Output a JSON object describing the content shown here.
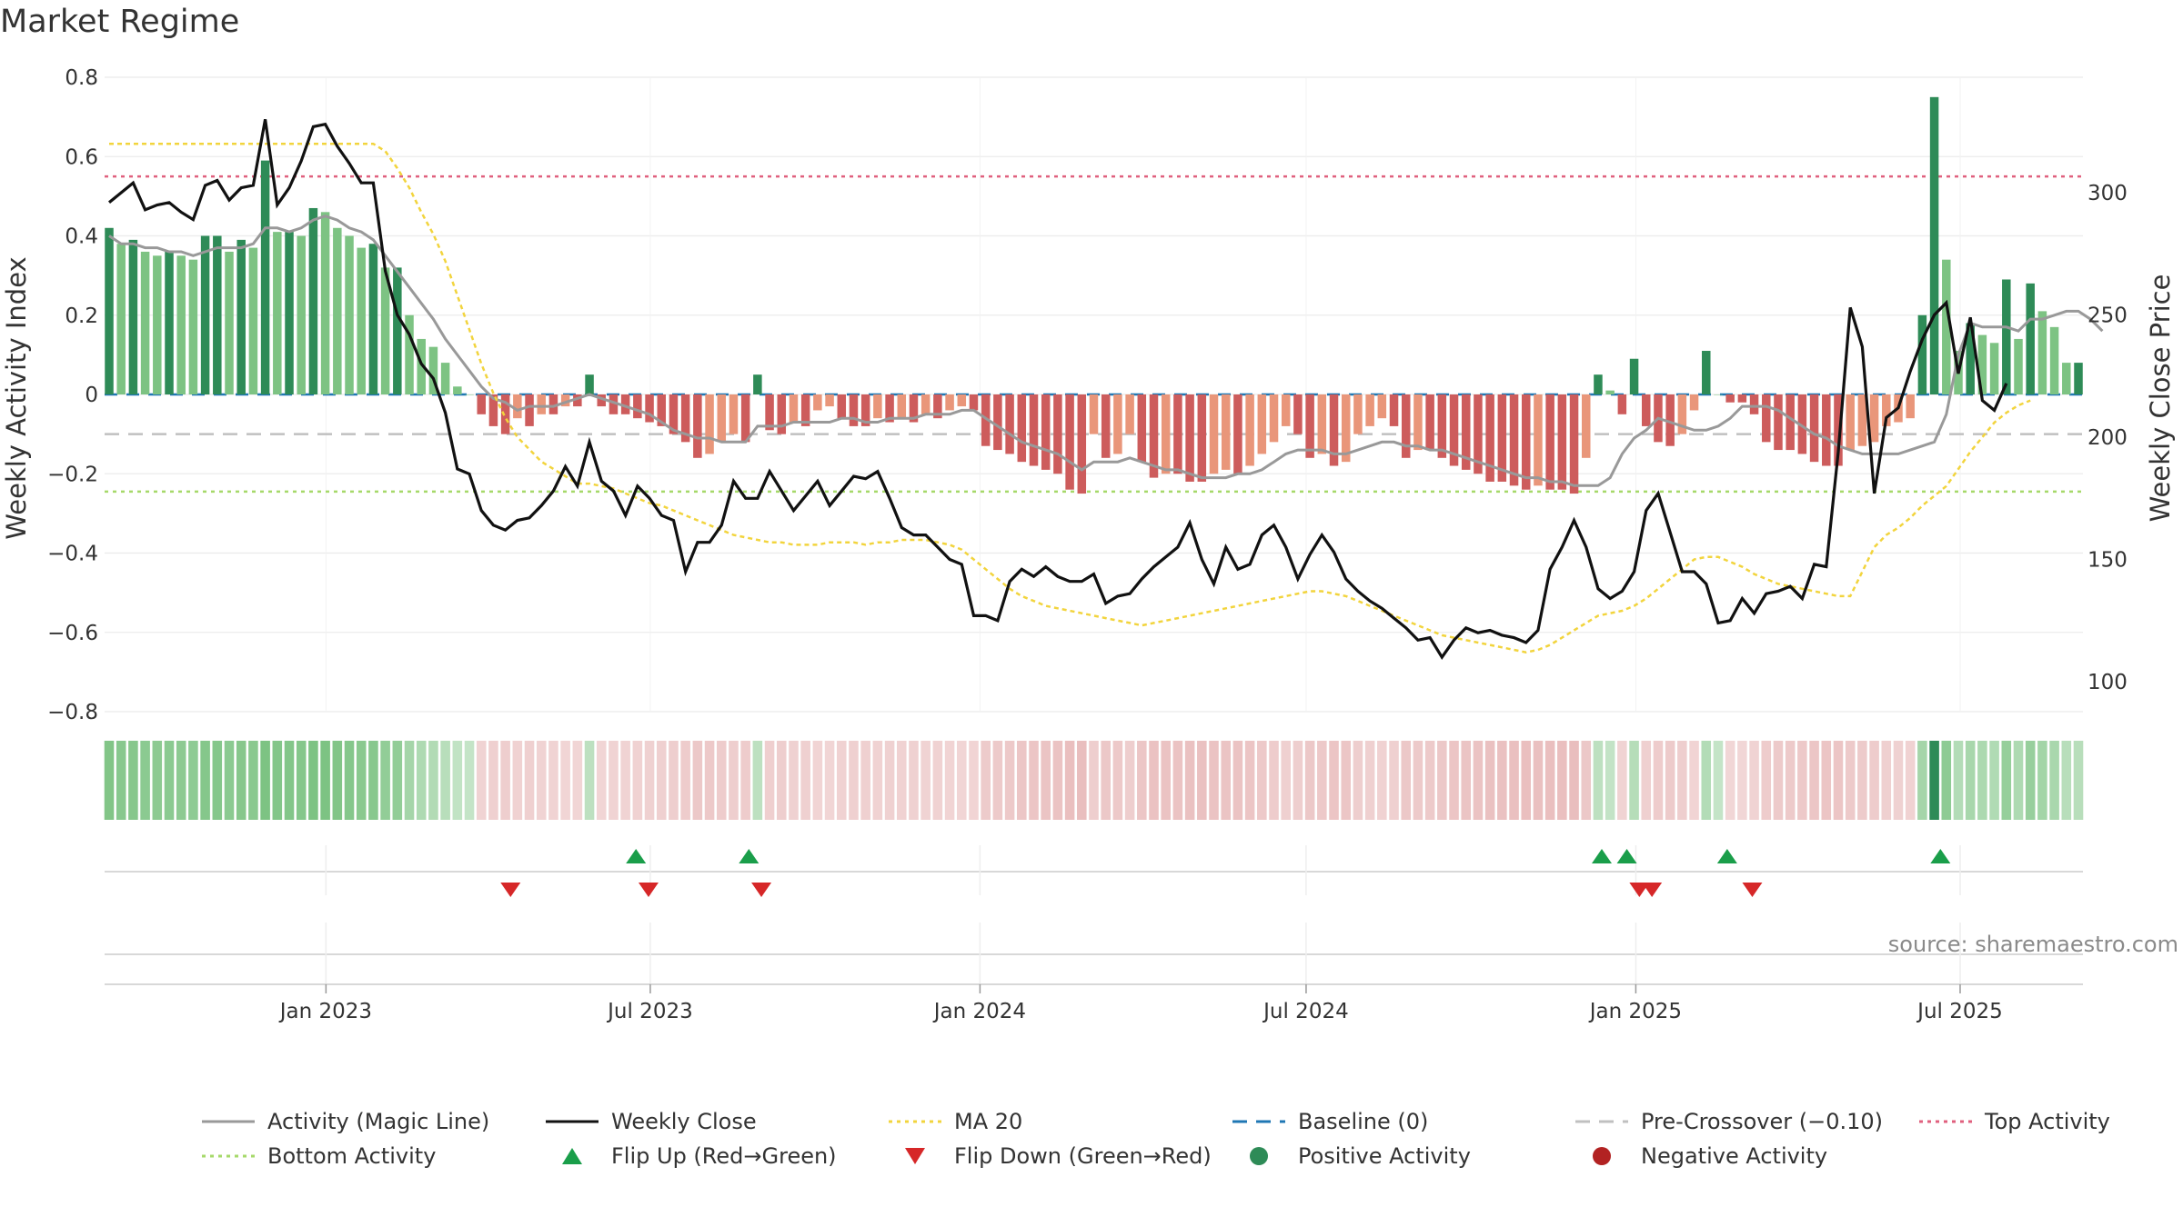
{
  "title": "Market Regime",
  "source": "source: sharemaestro.com",
  "colors": {
    "green_dark": "#2e8b57",
    "green_light": "#7dc383",
    "red_dark": "#cd5c5c",
    "red_light": "#e9967a",
    "magic_line": "#999999",
    "weekly_close": "#111111",
    "ma20": "#f2d43d",
    "baseline": "#1f77b4",
    "pre_crossover": "#c0c0c0",
    "top_activity": "#e0607e",
    "bottom_activity": "#a6d96a",
    "flip_up": "#1a9e4a",
    "flip_down": "#d62728"
  },
  "chart_data": {
    "type": "bar",
    "title": "Market Regime",
    "ylabel": "Weekly Activity Index",
    "y2label": "Weekly Close Price",
    "ylim": [
      -0.8,
      0.8
    ],
    "y2lim": [
      100,
      320
    ],
    "yticks": [
      "0.8",
      "0.6",
      "0.4",
      "0.2",
      "0",
      "−0.2",
      "−0.4",
      "−0.6",
      "−0.8"
    ],
    "yticks_values": [
      0.8,
      0.6,
      0.4,
      0.2,
      0,
      -0.2,
      -0.4,
      -0.6,
      -0.8
    ],
    "y2ticks": [
      "300",
      "250",
      "200",
      "150",
      "100"
    ],
    "y2ticks_values": [
      300,
      250,
      200,
      150,
      100
    ],
    "x_start": "2022-09-02",
    "x_end": "2025-09-05",
    "xticks": [
      {
        "date": "2023-01-01",
        "label": "Jan 2023"
      },
      {
        "date": "2023-07-01",
        "label": "Jul 2023"
      },
      {
        "date": "2024-01-01",
        "label": "Jan 2024"
      },
      {
        "date": "2024-07-01",
        "label": "Jul 2024"
      },
      {
        "date": "2025-01-01",
        "label": "Jan 2025"
      },
      {
        "date": "2025-07-01",
        "label": "Jul 2025"
      }
    ],
    "grid": true,
    "reference_lines": {
      "top_activity": 0.55,
      "bottom_activity": -0.245,
      "pre_crossover": -0.1,
      "baseline": 0
    },
    "activity_bars": [
      0.42,
      0.38,
      0.39,
      0.36,
      0.35,
      0.36,
      0.35,
      0.34,
      0.4,
      0.4,
      0.36,
      0.39,
      0.37,
      0.59,
      0.41,
      0.41,
      0.4,
      0.47,
      0.46,
      0.42,
      0.4,
      0.37,
      0.38,
      0.32,
      0.32,
      0.2,
      0.14,
      0.12,
      0.08,
      0.02,
      0,
      -0.05,
      -0.08,
      -0.1,
      -0.06,
      -0.08,
      -0.05,
      -0.05,
      -0.03,
      -0.03,
      0.05,
      -0.03,
      -0.05,
      -0.05,
      -0.06,
      -0.07,
      -0.08,
      -0.1,
      -0.12,
      -0.16,
      -0.15,
      -0.12,
      -0.1,
      -0.12,
      0.05,
      -0.09,
      -0.1,
      -0.07,
      -0.08,
      -0.04,
      -0.03,
      -0.06,
      -0.08,
      -0.08,
      -0.06,
      -0.07,
      -0.06,
      -0.07,
      -0.05,
      -0.06,
      -0.04,
      -0.03,
      -0.04,
      -0.13,
      -0.14,
      -0.15,
      -0.17,
      -0.18,
      -0.19,
      -0.2,
      -0.24,
      -0.25,
      -0.1,
      -0.16,
      -0.15,
      -0.1,
      -0.17,
      -0.21,
      -0.2,
      -0.2,
      -0.22,
      -0.22,
      -0.2,
      -0.19,
      -0.2,
      -0.18,
      -0.15,
      -0.12,
      -0.08,
      -0.1,
      -0.16,
      -0.15,
      -0.18,
      -0.17,
      -0.1,
      -0.08,
      -0.06,
      -0.08,
      -0.16,
      -0.14,
      -0.14,
      -0.16,
      -0.18,
      -0.19,
      -0.2,
      -0.22,
      -0.22,
      -0.23,
      -0.24,
      -0.23,
      -0.24,
      -0.24,
      -0.25,
      -0.16,
      0.05,
      0.01,
      -0.05,
      0.09,
      -0.08,
      -0.12,
      -0.13,
      -0.1,
      -0.04,
      0.11,
      0,
      -0.02,
      -0.02,
      -0.05,
      -0.12,
      -0.14,
      -0.14,
      -0.15,
      -0.17,
      -0.18,
      -0.18,
      -0.14,
      -0.13,
      -0.12,
      -0.08,
      -0.07,
      -0.06,
      0.2,
      0.75,
      0.34,
      0.11,
      0.18,
      0.15,
      0.13,
      0.29,
      0.14,
      0.28,
      0.21,
      0.17,
      0.08,
      0.08
    ],
    "weekly_close": [
      296,
      300,
      304,
      293,
      295,
      296,
      292,
      289,
      303,
      305,
      297,
      302,
      303,
      330,
      295,
      302,
      313,
      327,
      328,
      319,
      312,
      304,
      304,
      268,
      250,
      242,
      230,
      224,
      210,
      187,
      185,
      170,
      164,
      162,
      166,
      167,
      172,
      178,
      188,
      180,
      198,
      182,
      178,
      168,
      180,
      175,
      168,
      166,
      145,
      157,
      157,
      164,
      182,
      175,
      175,
      186,
      178,
      170,
      176,
      182,
      172,
      178,
      184,
      183,
      186,
      175,
      163,
      160,
      160,
      155,
      150,
      148,
      127,
      127,
      125,
      141,
      146,
      143,
      147,
      143,
      141,
      141,
      144,
      132,
      135,
      136,
      142,
      147,
      151,
      155,
      165,
      150,
      140,
      155,
      146,
      148,
      160,
      164,
      155,
      142,
      152,
      160,
      153,
      142,
      137,
      133,
      130,
      126,
      122,
      117,
      118,
      110,
      117,
      122,
      120,
      121,
      119,
      118,
      116,
      121,
      146,
      155,
      166,
      155,
      138,
      134,
      137,
      145,
      170,
      177,
      161,
      145,
      145,
      140,
      124,
      125,
      134,
      128,
      136,
      137,
      139,
      134,
      148,
      147,
      194,
      253,
      237,
      177,
      208,
      212,
      227,
      240,
      250,
      255,
      226,
      249,
      215,
      211,
      222
    ],
    "ma20": [
      320,
      320,
      320,
      320,
      320,
      320,
      320,
      320,
      320,
      320,
      320,
      320,
      320,
      320,
      320,
      320,
      320,
      320,
      320,
      320,
      320,
      320,
      320,
      317,
      310,
      302,
      292,
      283,
      272,
      258,
      244,
      230,
      218,
      208,
      200,
      195,
      190,
      187,
      184,
      181,
      181,
      180,
      179,
      177,
      175,
      173,
      172,
      170,
      168,
      166,
      164,
      162,
      160,
      159,
      158,
      157,
      157,
      156,
      156,
      156,
      157,
      157,
      157,
      156,
      157,
      157,
      158,
      158,
      158,
      157,
      156,
      154,
      150,
      146,
      142,
      138,
      135,
      133,
      131,
      130,
      129,
      128,
      127,
      126,
      125,
      124,
      123,
      124,
      125,
      126,
      127,
      128,
      129,
      130,
      131,
      132,
      133,
      134,
      135,
      136,
      137,
      137,
      136,
      135,
      133,
      131,
      129,
      127,
      125,
      123,
      121,
      119,
      118,
      117,
      116,
      115,
      114,
      113,
      112,
      113,
      115,
      118,
      121,
      124,
      127,
      128,
      129,
      131,
      134,
      138,
      142,
      146,
      150,
      151,
      151,
      149,
      147,
      144,
      142,
      140,
      139,
      138,
      137,
      136,
      135,
      135,
      145,
      155,
      160,
      163,
      167,
      172,
      176,
      180,
      187,
      194,
      200,
      206,
      210,
      213,
      215
    ],
    "magic_line": [
      0.4,
      0.38,
      0.38,
      0.37,
      0.37,
      0.36,
      0.36,
      0.35,
      0.36,
      0.37,
      0.37,
      0.37,
      0.38,
      0.42,
      0.42,
      0.41,
      0.42,
      0.44,
      0.45,
      0.44,
      0.42,
      0.41,
      0.39,
      0.35,
      0.31,
      0.27,
      0.23,
      0.19,
      0.14,
      0.1,
      0.06,
      0.02,
      -0.01,
      -0.02,
      -0.04,
      -0.03,
      -0.03,
      -0.03,
      -0.02,
      -0.01,
      0,
      -0.01,
      -0.02,
      -0.03,
      -0.04,
      -0.05,
      -0.07,
      -0.09,
      -0.1,
      -0.11,
      -0.11,
      -0.12,
      -0.12,
      -0.12,
      -0.08,
      -0.08,
      -0.08,
      -0.07,
      -0.07,
      -0.07,
      -0.07,
      -0.06,
      -0.06,
      -0.07,
      -0.07,
      -0.06,
      -0.06,
      -0.06,
      -0.05,
      -0.05,
      -0.05,
      -0.04,
      -0.04,
      -0.06,
      -0.08,
      -0.1,
      -0.12,
      -0.13,
      -0.14,
      -0.15,
      -0.17,
      -0.19,
      -0.17,
      -0.17,
      -0.17,
      -0.16,
      -0.17,
      -0.18,
      -0.19,
      -0.19,
      -0.2,
      -0.21,
      -0.21,
      -0.21,
      -0.2,
      -0.2,
      -0.19,
      -0.17,
      -0.15,
      -0.14,
      -0.14,
      -0.14,
      -0.15,
      -0.15,
      -0.14,
      -0.13,
      -0.12,
      -0.12,
      -0.13,
      -0.13,
      -0.14,
      -0.14,
      -0.15,
      -0.16,
      -0.17,
      -0.18,
      -0.19,
      -0.2,
      -0.21,
      -0.21,
      -0.22,
      -0.22,
      -0.23,
      -0.23,
      -0.23,
      -0.21,
      -0.15,
      -0.11,
      -0.09,
      -0.06,
      -0.07,
      -0.08,
      -0.09,
      -0.09,
      -0.08,
      -0.06,
      -0.03,
      -0.03,
      -0.03,
      -0.04,
      -0.06,
      -0.08,
      -0.1,
      -0.11,
      -0.13,
      -0.14,
      -0.15,
      -0.15,
      -0.15,
      -0.15,
      -0.14,
      -0.13,
      -0.12,
      -0.05,
      0.1,
      0.18,
      0.17,
      0.17,
      0.17,
      0.16,
      0.19,
      0.19,
      0.2,
      0.21,
      0.21,
      0.19,
      0.16
    ],
    "flip_up": [
      "2023-06-23",
      "2023-08-25",
      "2024-12-13",
      "2024-12-27",
      "2025-02-21",
      "2025-06-20"
    ],
    "flip_down": [
      "2023-04-14",
      "2023-06-30",
      "2023-09-01",
      "2025-01-03",
      "2025-01-10",
      "2025-03-07"
    ]
  },
  "legend": [
    {
      "label": "Activity (Magic Line)",
      "style": "line",
      "color": "#999999"
    },
    {
      "label": "Weekly Close",
      "style": "line",
      "color": "#111111"
    },
    {
      "label": "MA 20",
      "style": "dotted",
      "color": "#f2d43d"
    },
    {
      "label": "Baseline (0)",
      "style": "dashed",
      "color": "#1f77b4"
    },
    {
      "label": "Pre-Crossover (−0.10)",
      "style": "dashed",
      "color": "#c0c0c0"
    },
    {
      "label": "Top Activity",
      "style": "dotted",
      "color": "#e0607e"
    },
    {
      "label": "Bottom Activity",
      "style": "dotted",
      "color": "#a6d96a"
    },
    {
      "label": "Flip Up (Red→Green)",
      "style": "triangle-up",
      "color": "#1a9e4a"
    },
    {
      "label": "Flip Down (Green→Red)",
      "style": "triangle-down",
      "color": "#d62728"
    },
    {
      "label": "Positive Activity",
      "style": "circle",
      "color": "#2e8b57"
    },
    {
      "label": "Negative Activity",
      "style": "circle",
      "color": "#b22222"
    }
  ]
}
